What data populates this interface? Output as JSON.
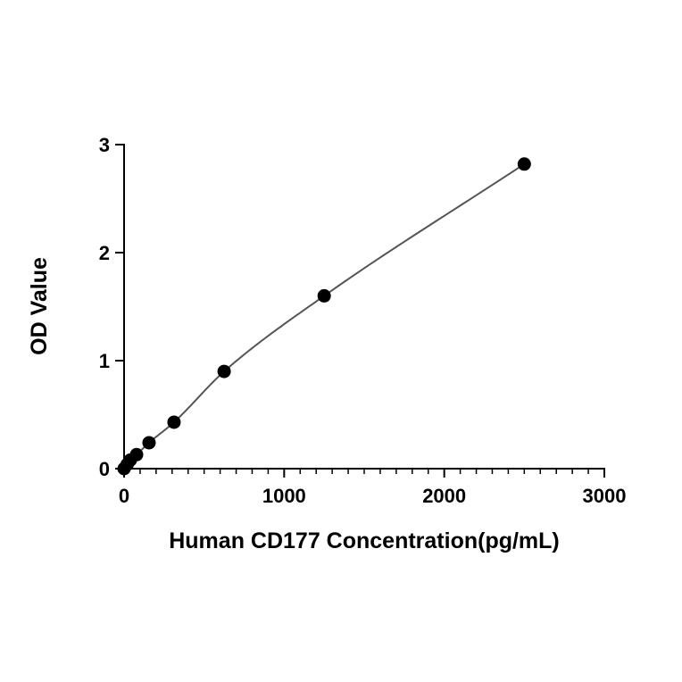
{
  "chart_data": {
    "type": "scatter",
    "title": "",
    "xlabel": "Human CD177 Concentration(pg/mL)",
    "ylabel": "OD Value",
    "xlim": [
      0,
      3000
    ],
    "ylim": [
      0,
      3
    ],
    "x_ticks": [
      0,
      1000,
      2000,
      3000
    ],
    "y_ticks": [
      0,
      1,
      2,
      3
    ],
    "x_tick_labels": [
      "0",
      "1000",
      "2000",
      "3000"
    ],
    "y_tick_labels": [
      "0",
      "1",
      "2",
      "3"
    ],
    "grid": false,
    "legend": "none",
    "has_fit_curve": true,
    "point_color": "#000000",
    "curve_color": "#555555",
    "series": [
      {
        "x": [
          0,
          19.5,
          39,
          78,
          156,
          312,
          625,
          1250,
          2500
        ],
        "y": [
          0.0,
          0.04,
          0.08,
          0.13,
          0.24,
          0.43,
          0.9,
          1.6,
          2.82
        ]
      }
    ]
  }
}
